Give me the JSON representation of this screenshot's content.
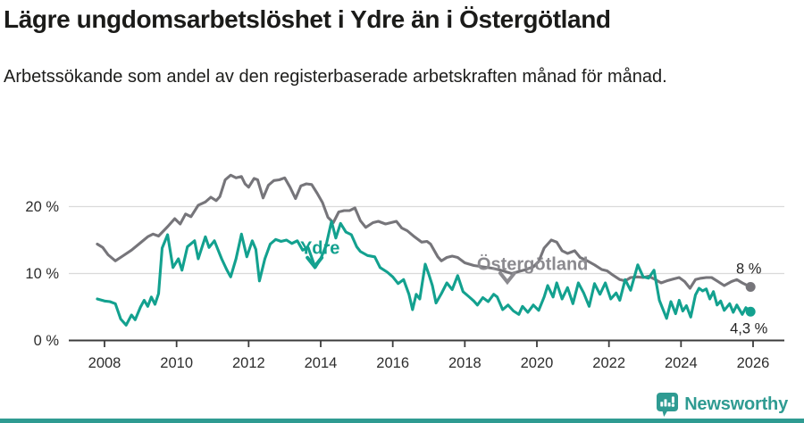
{
  "header": {
    "title": "Lägre ungdomsarbetslöshet i Ydre än i Östergötland",
    "subtitle": "Arbetssökande som andel av den registerbaserade arbetskraften månad för månad."
  },
  "footer": {
    "brand": "Newsworthy"
  },
  "colors": {
    "background": "#ffffff",
    "grid": "#dadada",
    "axis": "#3c3c3c",
    "axis_text": "#2d2d2d",
    "end_label_text": "#242424",
    "brand_teal": "#2f9b92",
    "ydre_teal": "#13a18f",
    "ostergotland_gray": "#76757a",
    "ostergotland_label_gray": "#8b8a8f"
  },
  "chart_data": {
    "type": "line",
    "title": "Lägre ungdomsarbetslöshet i Ydre än i Östergötland",
    "subtitle": "Arbetssökande som andel av den registerbaserade arbetskraften månad för månad.",
    "unit": "%",
    "grid": true,
    "x_axis": {
      "lim": [
        2007.5,
        2026.9
      ],
      "ticks": [
        2008,
        2010,
        2012,
        2014,
        2016,
        2018,
        2020,
        2022,
        2024,
        2026
      ]
    },
    "y_axis": {
      "lim": [
        0,
        26
      ],
      "ticks": [
        {
          "value": 0,
          "label": "0 %"
        },
        {
          "value": 10,
          "label": "10 %"
        },
        {
          "value": 20,
          "label": "20 %"
        }
      ]
    },
    "series": [
      {
        "name": "Östergötland",
        "color": "#76757a",
        "label": {
          "text": "Östergötland",
          "color": "#8b8a8f",
          "t": 2019.88,
          "v": 11.5,
          "caret_t": 2019.18,
          "caret_v": 9.4
        },
        "end_label": {
          "text": "8 %",
          "position": "above"
        },
        "points": [
          [
            2007.8,
            14.4
          ],
          [
            2007.95,
            13.9
          ],
          [
            2008.1,
            12.8
          ],
          [
            2008.3,
            11.9
          ],
          [
            2008.5,
            12.6
          ],
          [
            2008.75,
            13.5
          ],
          [
            2009.0,
            14.6
          ],
          [
            2009.2,
            15.5
          ],
          [
            2009.35,
            15.9
          ],
          [
            2009.5,
            15.6
          ],
          [
            2009.75,
            17.0
          ],
          [
            2009.95,
            18.2
          ],
          [
            2010.1,
            17.4
          ],
          [
            2010.25,
            18.9
          ],
          [
            2010.4,
            18.5
          ],
          [
            2010.6,
            20.2
          ],
          [
            2010.8,
            20.7
          ],
          [
            2010.95,
            21.4
          ],
          [
            2011.1,
            20.9
          ],
          [
            2011.2,
            21.5
          ],
          [
            2011.35,
            24.0
          ],
          [
            2011.5,
            24.7
          ],
          [
            2011.65,
            24.3
          ],
          [
            2011.8,
            24.5
          ],
          [
            2011.9,
            23.4
          ],
          [
            2012.0,
            22.9
          ],
          [
            2012.15,
            24.2
          ],
          [
            2012.25,
            24.0
          ],
          [
            2012.4,
            21.3
          ],
          [
            2012.55,
            23.2
          ],
          [
            2012.7,
            23.9
          ],
          [
            2012.85,
            24.0
          ],
          [
            2013.0,
            24.3
          ],
          [
            2013.15,
            22.9
          ],
          [
            2013.3,
            21.2
          ],
          [
            2013.45,
            23.1
          ],
          [
            2013.6,
            23.4
          ],
          [
            2013.75,
            23.3
          ],
          [
            2013.9,
            22.0
          ],
          [
            2014.05,
            20.6
          ],
          [
            2014.2,
            18.4
          ],
          [
            2014.35,
            17.6
          ],
          [
            2014.5,
            19.2
          ],
          [
            2014.65,
            19.4
          ],
          [
            2014.8,
            19.4
          ],
          [
            2014.95,
            19.8
          ],
          [
            2015.1,
            17.9
          ],
          [
            2015.25,
            16.9
          ],
          [
            2015.45,
            17.6
          ],
          [
            2015.6,
            17.8
          ],
          [
            2015.8,
            17.4
          ],
          [
            2015.95,
            17.6
          ],
          [
            2016.1,
            17.8
          ],
          [
            2016.25,
            16.8
          ],
          [
            2016.4,
            16.4
          ],
          [
            2016.6,
            15.5
          ],
          [
            2016.8,
            14.7
          ],
          [
            2016.95,
            14.8
          ],
          [
            2017.05,
            14.4
          ],
          [
            2017.25,
            12.5
          ],
          [
            2017.35,
            11.9
          ],
          [
            2017.5,
            12.4
          ],
          [
            2017.65,
            12.6
          ],
          [
            2017.8,
            12.4
          ],
          [
            2018.0,
            11.6
          ],
          [
            2018.25,
            11.2
          ],
          [
            2018.5,
            11.0
          ],
          [
            2018.75,
            10.8
          ],
          [
            2019.0,
            10.5
          ],
          [
            2019.3,
            10.0
          ],
          [
            2019.5,
            10.3
          ],
          [
            2019.7,
            10.6
          ],
          [
            2019.9,
            11.0
          ],
          [
            2020.05,
            11.8
          ],
          [
            2020.2,
            13.8
          ],
          [
            2020.4,
            15.0
          ],
          [
            2020.55,
            14.7
          ],
          [
            2020.7,
            13.4
          ],
          [
            2020.85,
            13.0
          ],
          [
            2021.05,
            13.4
          ],
          [
            2021.2,
            12.4
          ],
          [
            2021.4,
            11.9
          ],
          [
            2021.6,
            11.3
          ],
          [
            2021.8,
            10.6
          ],
          [
            2021.95,
            10.4
          ],
          [
            2022.1,
            9.8
          ],
          [
            2022.3,
            9.1
          ],
          [
            2022.45,
            8.9
          ],
          [
            2022.6,
            9.4
          ],
          [
            2022.8,
            9.5
          ],
          [
            2022.95,
            9.4
          ],
          [
            2023.1,
            9.6
          ],
          [
            2023.25,
            9.2
          ],
          [
            2023.45,
            8.6
          ],
          [
            2023.6,
            8.9
          ],
          [
            2023.8,
            9.2
          ],
          [
            2023.95,
            9.4
          ],
          [
            2024.1,
            8.8
          ],
          [
            2024.25,
            7.8
          ],
          [
            2024.4,
            9.1
          ],
          [
            2024.55,
            9.3
          ],
          [
            2024.7,
            9.4
          ],
          [
            2024.85,
            9.4
          ],
          [
            2025.0,
            8.9
          ],
          [
            2025.2,
            8.2
          ],
          [
            2025.4,
            8.8
          ],
          [
            2025.55,
            9.1
          ],
          [
            2025.7,
            8.6
          ],
          [
            2025.85,
            8.2
          ],
          [
            2025.93,
            8.0
          ]
        ]
      },
      {
        "name": "Ydre",
        "color": "#13a18f",
        "label": {
          "text": "Ydre",
          "color": "#13a18f",
          "t": 2013.98,
          "v": 13.9,
          "caret_t": 2013.83,
          "caret_v": 11.7
        },
        "end_label": {
          "text": "4,3 %",
          "position": "below"
        },
        "points": [
          [
            2007.8,
            6.2
          ],
          [
            2008.0,
            5.9
          ],
          [
            2008.15,
            5.8
          ],
          [
            2008.3,
            5.5
          ],
          [
            2008.45,
            3.2
          ],
          [
            2008.6,
            2.3
          ],
          [
            2008.75,
            3.8
          ],
          [
            2008.85,
            3.1
          ],
          [
            2009.0,
            5.0
          ],
          [
            2009.1,
            6.0
          ],
          [
            2009.2,
            5.1
          ],
          [
            2009.3,
            6.5
          ],
          [
            2009.4,
            5.4
          ],
          [
            2009.5,
            7.0
          ],
          [
            2009.6,
            13.8
          ],
          [
            2009.75,
            15.8
          ],
          [
            2009.9,
            10.9
          ],
          [
            2010.05,
            12.2
          ],
          [
            2010.15,
            10.5
          ],
          [
            2010.3,
            14.0
          ],
          [
            2010.5,
            14.9
          ],
          [
            2010.6,
            12.2
          ],
          [
            2010.8,
            15.5
          ],
          [
            2010.9,
            13.9
          ],
          [
            2011.05,
            14.9
          ],
          [
            2011.25,
            12.2
          ],
          [
            2011.4,
            10.5
          ],
          [
            2011.5,
            9.5
          ],
          [
            2011.65,
            12.2
          ],
          [
            2011.8,
            15.9
          ],
          [
            2011.95,
            12.5
          ],
          [
            2012.1,
            14.9
          ],
          [
            2012.2,
            13.6
          ],
          [
            2012.3,
            8.9
          ],
          [
            2012.45,
            12.2
          ],
          [
            2012.6,
            14.4
          ],
          [
            2012.75,
            15.1
          ],
          [
            2012.9,
            14.8
          ],
          [
            2013.05,
            15.0
          ],
          [
            2013.2,
            14.5
          ],
          [
            2013.35,
            14.9
          ],
          [
            2013.5,
            13.5
          ],
          [
            2013.65,
            13.9
          ],
          [
            2013.85,
            10.9
          ],
          [
            2014.0,
            12.2
          ],
          [
            2014.15,
            14.2
          ],
          [
            2014.3,
            17.8
          ],
          [
            2014.42,
            15.3
          ],
          [
            2014.55,
            17.5
          ],
          [
            2014.7,
            16.2
          ],
          [
            2014.85,
            15.8
          ],
          [
            2015.0,
            14.0
          ],
          [
            2015.1,
            13.3
          ],
          [
            2015.3,
            12.7
          ],
          [
            2015.5,
            12.5
          ],
          [
            2015.65,
            10.9
          ],
          [
            2015.85,
            10.2
          ],
          [
            2016.0,
            9.5
          ],
          [
            2016.15,
            8.5
          ],
          [
            2016.3,
            9.1
          ],
          [
            2016.45,
            6.9
          ],
          [
            2016.55,
            4.6
          ],
          [
            2016.65,
            6.9
          ],
          [
            2016.75,
            6.2
          ],
          [
            2016.9,
            11.4
          ],
          [
            2017.0,
            9.9
          ],
          [
            2017.1,
            8.2
          ],
          [
            2017.2,
            5.6
          ],
          [
            2017.35,
            7.0
          ],
          [
            2017.5,
            8.6
          ],
          [
            2017.65,
            7.6
          ],
          [
            2017.8,
            9.7
          ],
          [
            2017.95,
            7.3
          ],
          [
            2018.1,
            6.6
          ],
          [
            2018.25,
            5.9
          ],
          [
            2018.35,
            5.3
          ],
          [
            2018.5,
            6.4
          ],
          [
            2018.65,
            5.8
          ],
          [
            2018.8,
            6.9
          ],
          [
            2018.9,
            6.5
          ],
          [
            2019.05,
            4.6
          ],
          [
            2019.2,
            5.3
          ],
          [
            2019.35,
            4.4
          ],
          [
            2019.5,
            3.9
          ],
          [
            2019.6,
            5.1
          ],
          [
            2019.75,
            4.2
          ],
          [
            2019.9,
            5.3
          ],
          [
            2020.05,
            4.5
          ],
          [
            2020.2,
            6.5
          ],
          [
            2020.3,
            8.2
          ],
          [
            2020.45,
            6.5
          ],
          [
            2020.55,
            8.6
          ],
          [
            2020.7,
            6.2
          ],
          [
            2020.85,
            7.9
          ],
          [
            2021.0,
            5.5
          ],
          [
            2021.15,
            8.6
          ],
          [
            2021.3,
            7.1
          ],
          [
            2021.45,
            5.1
          ],
          [
            2021.6,
            8.5
          ],
          [
            2021.75,
            6.9
          ],
          [
            2021.9,
            8.6
          ],
          [
            2022.05,
            6.2
          ],
          [
            2022.2,
            7.1
          ],
          [
            2022.3,
            6.0
          ],
          [
            2022.45,
            9.1
          ],
          [
            2022.6,
            7.5
          ],
          [
            2022.8,
            11.3
          ],
          [
            2022.95,
            9.5
          ],
          [
            2023.1,
            9.3
          ],
          [
            2023.25,
            10.5
          ],
          [
            2023.4,
            6.0
          ],
          [
            2023.6,
            3.3
          ],
          [
            2023.72,
            5.8
          ],
          [
            2023.85,
            4.0
          ],
          [
            2023.95,
            6.0
          ],
          [
            2024.05,
            4.4
          ],
          [
            2024.15,
            5.2
          ],
          [
            2024.27,
            3.5
          ],
          [
            2024.4,
            6.8
          ],
          [
            2024.5,
            7.8
          ],
          [
            2024.6,
            7.4
          ],
          [
            2024.7,
            7.7
          ],
          [
            2024.8,
            6.2
          ],
          [
            2024.9,
            7.3
          ],
          [
            2025.0,
            5.3
          ],
          [
            2025.1,
            5.9
          ],
          [
            2025.2,
            4.5
          ],
          [
            2025.35,
            5.5
          ],
          [
            2025.45,
            4.2
          ],
          [
            2025.55,
            5.3
          ],
          [
            2025.7,
            3.9
          ],
          [
            2025.8,
            4.9
          ],
          [
            2025.93,
            4.3
          ]
        ]
      }
    ]
  }
}
